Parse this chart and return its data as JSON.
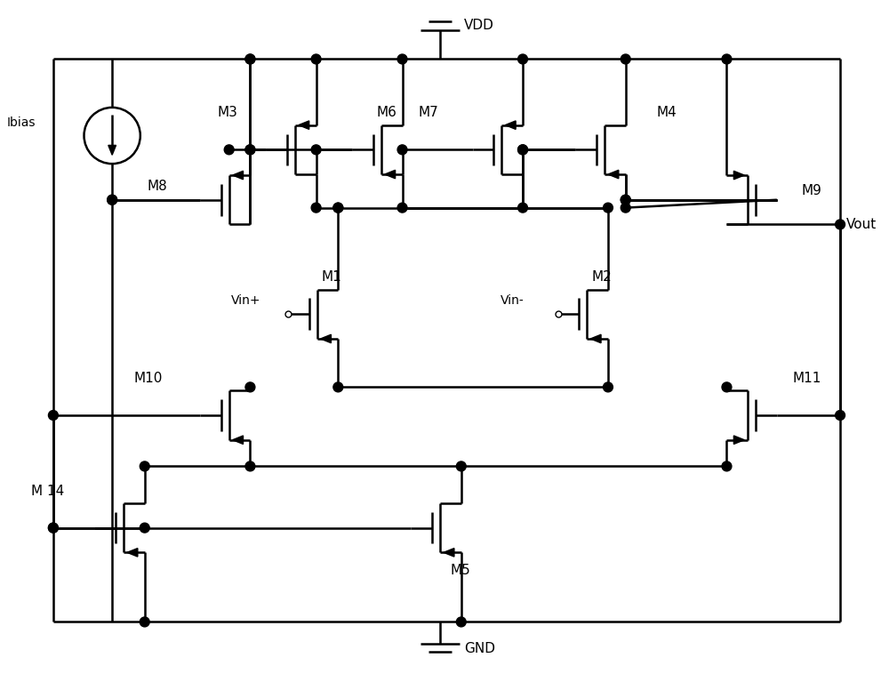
{
  "bg_color": "#ffffff",
  "line_color": "#000000",
  "lw": 1.8,
  "fs": 11,
  "fig_w": 10.0,
  "fig_h": 7.58,
  "xlim": [
    0,
    10
  ],
  "ylim": [
    0,
    7.58
  ]
}
